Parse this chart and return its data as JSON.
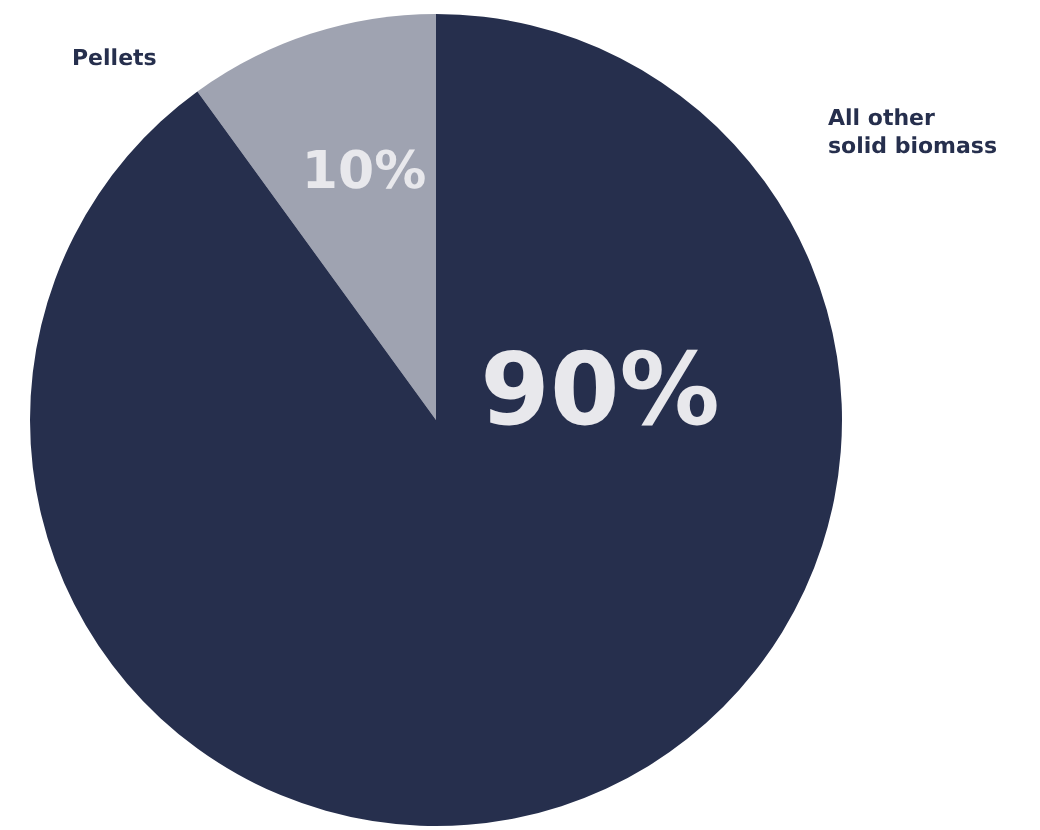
{
  "chart_data": {
    "type": "pie",
    "categories": [
      "Pellets",
      "All other solid biomass"
    ],
    "values": [
      10,
      90
    ],
    "value_labels": [
      "10%",
      "90%"
    ],
    "colors": [
      "#9fa3b1",
      "#262f4d"
    ],
    "legend": false
  }
}
